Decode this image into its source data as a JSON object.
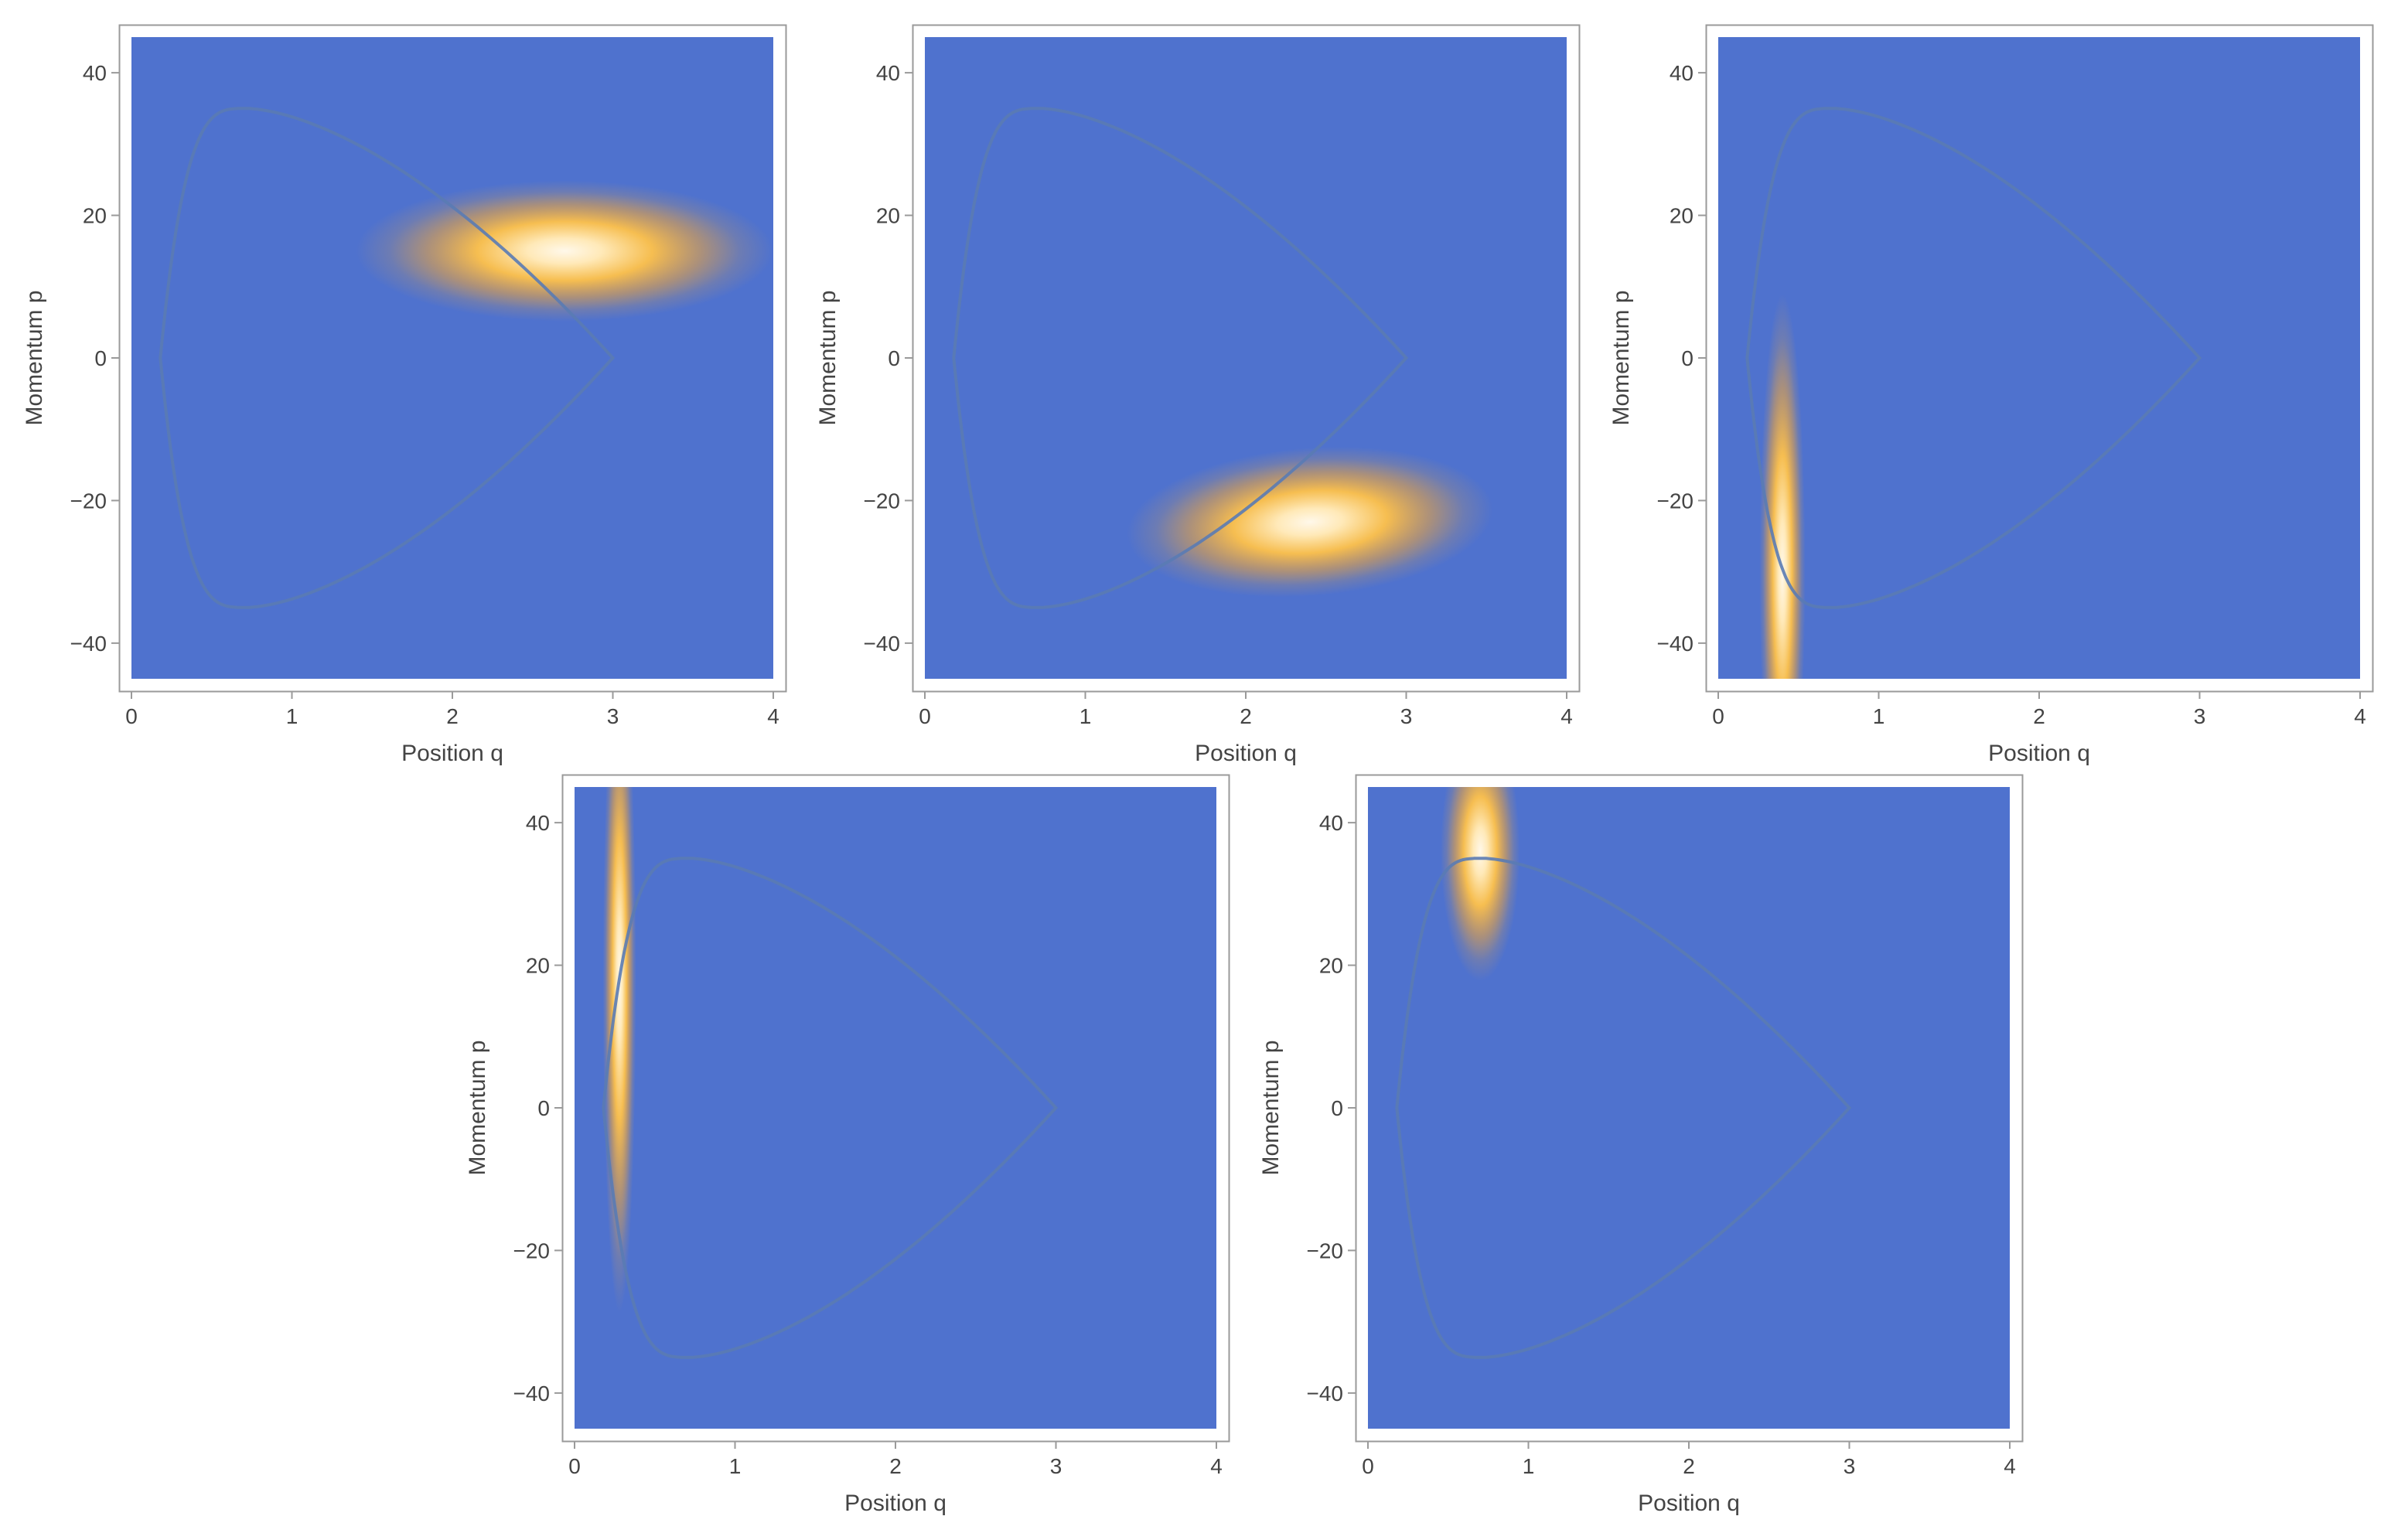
{
  "colors": {
    "background": "#ffffff",
    "plot_fill": "#4f72ce",
    "frame": "#9a9a9a",
    "orbit": "#5a7bb4",
    "density_peak": "#fff8ea",
    "density_mid": "#ffc24a",
    "density_edge": "#f6a937",
    "tick_label": "#444444"
  },
  "chart_data": [
    {
      "type": "heatmap",
      "xlabel": "Position q",
      "ylabel": "Momentum p",
      "xlim": [
        0,
        4
      ],
      "ylim": [
        -45,
        45
      ],
      "xticks": [
        0,
        1,
        2,
        3,
        4
      ],
      "yticks": [
        -40,
        -20,
        0,
        20,
        40
      ],
      "xtick_labels": [
        "0",
        "1",
        "2",
        "3",
        "4"
      ],
      "ytick_labels": [
        "−40",
        "−20",
        "0",
        "20",
        "40"
      ],
      "orbit": {
        "q_min": 0.18,
        "q_max": 3.0,
        "p_max": 35,
        "q_at_p_max": 0.72
      },
      "packet": {
        "q": 2.7,
        "p": 15,
        "sigma_q": 0.5,
        "sigma_p": 3.8,
        "rho": 0
      }
    },
    {
      "type": "heatmap",
      "xlabel": "Position q",
      "ylabel": "Momentum p",
      "xlim": [
        0,
        4
      ],
      "ylim": [
        -45,
        45
      ],
      "xticks": [
        0,
        1,
        2,
        3,
        4
      ],
      "yticks": [
        -40,
        -20,
        0,
        20,
        40
      ],
      "xtick_labels": [
        "0",
        "1",
        "2",
        "3",
        "4"
      ],
      "ytick_labels": [
        "−40",
        "−20",
        "0",
        "20",
        "40"
      ],
      "orbit": {
        "q_min": 0.18,
        "q_max": 3.0,
        "p_max": 35,
        "q_at_p_max": 0.72
      },
      "packet": {
        "q": 2.4,
        "p": -23,
        "sigma_q": 0.44,
        "sigma_p": 4.0,
        "rho": 0.1
      }
    },
    {
      "type": "heatmap",
      "xlabel": "Position q",
      "ylabel": "Momentum p",
      "xlim": [
        0,
        4
      ],
      "ylim": [
        -45,
        45
      ],
      "xticks": [
        0,
        1,
        2,
        3,
        4
      ],
      "yticks": [
        -40,
        -20,
        0,
        20,
        40
      ],
      "xtick_labels": [
        "0",
        "1",
        "2",
        "3",
        "4"
      ],
      "ytick_labels": [
        "−40",
        "−20",
        "0",
        "20",
        "40"
      ],
      "orbit": {
        "q_min": 0.18,
        "q_max": 3.0,
        "p_max": 35,
        "q_at_p_max": 0.72
      },
      "packet": {
        "q": 0.4,
        "p": -30,
        "sigma_q": 0.055,
        "sigma_p": 15,
        "rho": 0
      }
    },
    {
      "type": "heatmap",
      "xlabel": "Position q",
      "ylabel": "Momentum p",
      "xlim": [
        0,
        4
      ],
      "ylim": [
        -45,
        45
      ],
      "xticks": [
        0,
        1,
        2,
        3,
        4
      ],
      "yticks": [
        -40,
        -20,
        0,
        20,
        40
      ],
      "xtick_labels": [
        "0",
        "1",
        "2",
        "3",
        "4"
      ],
      "ytick_labels": [
        "−40",
        "−20",
        "0",
        "20",
        "40"
      ],
      "orbit": {
        "q_min": 0.18,
        "q_max": 3.0,
        "p_max": 35,
        "q_at_p_max": 0.72
      },
      "packet": {
        "q": 0.28,
        "p": 18,
        "sigma_q": 0.04,
        "sigma_p": 18,
        "rho": 0
      }
    },
    {
      "type": "heatmap",
      "xlabel": "Position q",
      "ylabel": "Momentum p",
      "xlim": [
        0,
        4
      ],
      "ylim": [
        -45,
        45
      ],
      "xticks": [
        0,
        1,
        2,
        3,
        4
      ],
      "yticks": [
        -40,
        -20,
        0,
        20,
        40
      ],
      "xtick_labels": [
        "0",
        "1",
        "2",
        "3",
        "4"
      ],
      "ytick_labels": [
        "−40",
        "−20",
        "0",
        "20",
        "40"
      ],
      "orbit": {
        "q_min": 0.18,
        "q_max": 3.0,
        "p_max": 35,
        "q_at_p_max": 0.72
      },
      "packet": {
        "q": 0.7,
        "p": 36,
        "sigma_q": 0.095,
        "sigma_p": 7,
        "rho": 0
      }
    }
  ]
}
